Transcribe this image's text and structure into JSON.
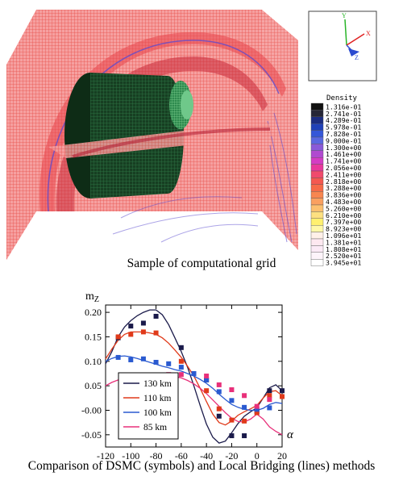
{
  "figure_grid": {
    "caption": "Sample of computational grid",
    "density_legend": {
      "title": "Density",
      "entries": [
        {
          "label": "1.316e-01",
          "color": "#111111"
        },
        {
          "label": "2.741e-01",
          "color": "#262636"
        },
        {
          "label": "4.289e-01",
          "color": "#1c2c80"
        },
        {
          "label": "5.978e-01",
          "color": "#2040b8"
        },
        {
          "label": "7.828e-01",
          "color": "#3557d8"
        },
        {
          "label": "9.000e-01",
          "color": "#5a68e0"
        },
        {
          "label": "1.300e+00",
          "color": "#8a5ad8"
        },
        {
          "label": "1.461e+00",
          "color": "#b04ad0"
        },
        {
          "label": "1.741e+00",
          "color": "#d43cc4"
        },
        {
          "label": "2.056e+00",
          "color": "#e8389c"
        },
        {
          "label": "2.411e+00",
          "color": "#f04a6c"
        },
        {
          "label": "2.818e+00",
          "color": "#f45850"
        },
        {
          "label": "3.288e+00",
          "color": "#f66a48"
        },
        {
          "label": "3.836e+00",
          "color": "#f88650"
        },
        {
          "label": "4.483e+00",
          "color": "#faa060"
        },
        {
          "label": "5.260e+00",
          "color": "#fcc070"
        },
        {
          "label": "6.210e+00",
          "color": "#fde080"
        },
        {
          "label": "7.397e+00",
          "color": "#fff070"
        },
        {
          "label": "8.923e+00",
          "color": "#fff8a8"
        },
        {
          "label": "1.096e+01",
          "color": "#fff0e8"
        },
        {
          "label": "1.381e+01",
          "color": "#fde8f0"
        },
        {
          "label": "1.808e+01",
          "color": "#fbeaf6"
        },
        {
          "label": "2.520e+01",
          "color": "#fdf4fa"
        },
        {
          "label": "3.945e+01",
          "color": "#ffffff"
        }
      ]
    },
    "axis_widget": {
      "y_label": "Y",
      "x_label": "X",
      "z_label": "Z"
    }
  },
  "chart_data": {
    "type": "line",
    "title": "",
    "caption": "Comparison of DSMC (symbols) and Local Bridging (lines) methods",
    "xlabel": "α",
    "ylabel": "m",
    "ylabel_sub": "Z",
    "xlim": [
      -120,
      20
    ],
    "ylim": [
      -0.075,
      0.215
    ],
    "xticks": [
      -120,
      -100,
      -80,
      -60,
      -40,
      -20,
      0,
      20
    ],
    "yticks": [
      0.2,
      0.15,
      0.1,
      0.05,
      -0.0,
      -0.05
    ],
    "ytick_labels": [
      "0.20",
      "0.15",
      "0.10",
      "0.05",
      "-0.00",
      "-0.05"
    ],
    "legend_position": "bottom-left",
    "series": [
      {
        "name": "130 km",
        "color": "#1a1a4a",
        "line_x": [
          -120,
          -115,
          -110,
          -105,
          -100,
          -95,
          -90,
          -85,
          -80,
          -75,
          -70,
          -65,
          -60,
          -55,
          -50,
          -45,
          -40,
          -35,
          -30,
          -25,
          -20,
          -15,
          -10,
          -5,
          0,
          5,
          10,
          15,
          20
        ],
        "line_y": [
          0.095,
          0.12,
          0.15,
          0.17,
          0.183,
          0.193,
          0.2,
          0.205,
          0.205,
          0.195,
          0.175,
          0.148,
          0.12,
          0.088,
          0.05,
          0.01,
          -0.028,
          -0.055,
          -0.067,
          -0.063,
          -0.046,
          -0.027,
          -0.012,
          -0.003,
          0.005,
          0.025,
          0.046,
          0.052,
          0.04
        ],
        "points_x": [
          -110,
          -100,
          -90,
          -80,
          -60,
          -40,
          -30,
          -20,
          -10,
          0,
          10,
          20
        ],
        "points_y": [
          0.148,
          0.172,
          0.178,
          0.192,
          0.128,
          0.062,
          -0.012,
          -0.052,
          -0.052,
          -0.003,
          0.04,
          0.04
        ]
      },
      {
        "name": "110 km",
        "color": "#e03a1a",
        "line_x": [
          -120,
          -115,
          -110,
          -105,
          -100,
          -95,
          -90,
          -85,
          -80,
          -75,
          -70,
          -65,
          -60,
          -55,
          -50,
          -45,
          -40,
          -35,
          -30,
          -25,
          -20,
          -15,
          -10,
          -5,
          0,
          5,
          10,
          15,
          20
        ],
        "line_y": [
          0.105,
          0.125,
          0.143,
          0.155,
          0.16,
          0.16,
          0.16,
          0.158,
          0.155,
          0.148,
          0.137,
          0.123,
          0.108,
          0.09,
          0.07,
          0.045,
          0.018,
          -0.008,
          -0.025,
          -0.03,
          -0.022,
          -0.01,
          -0.003,
          0.003,
          0.01,
          0.025,
          0.038,
          0.04,
          0.03
        ],
        "points_x": [
          -110,
          -100,
          -90,
          -80,
          -60,
          -40,
          -30,
          -20,
          -10,
          0,
          10,
          20
        ],
        "points_y": [
          0.15,
          0.155,
          0.16,
          0.158,
          0.1,
          0.04,
          0.003,
          -0.02,
          -0.022,
          -0.005,
          0.03,
          0.028
        ]
      },
      {
        "name": "100 km",
        "color": "#2a5ad0",
        "line_x": [
          -120,
          -115,
          -110,
          -105,
          -100,
          -95,
          -90,
          -85,
          -80,
          -75,
          -70,
          -65,
          -60,
          -55,
          -50,
          -45,
          -40,
          -35,
          -30,
          -25,
          -20,
          -15,
          -10,
          -5,
          0,
          5,
          10,
          15,
          20
        ],
        "line_y": [
          0.1,
          0.106,
          0.11,
          0.111,
          0.109,
          0.106,
          0.102,
          0.098,
          0.094,
          0.09,
          0.087,
          0.083,
          0.08,
          0.075,
          0.07,
          0.063,
          0.055,
          0.045,
          0.033,
          0.022,
          0.012,
          0.006,
          0.002,
          0.0,
          0.0,
          0.004,
          0.012,
          0.016,
          0.014
        ],
        "points_x": [
          -110,
          -100,
          -90,
          -80,
          -70,
          -60,
          -50,
          -40,
          -30,
          -20,
          -10,
          0,
          10
        ],
        "points_y": [
          0.108,
          0.103,
          0.105,
          0.098,
          0.095,
          0.088,
          0.075,
          0.062,
          0.038,
          0.02,
          0.006,
          0.002,
          0.005
        ]
      },
      {
        "name": "85 km",
        "color": "#e8307a",
        "line_x": [
          -120,
          -115,
          -110,
          -105,
          -100,
          -95,
          -90,
          -85,
          -80,
          -75,
          -70,
          -65,
          -60,
          -55,
          -50,
          -45,
          -40,
          -35,
          -30,
          -25,
          -20,
          -15,
          -10,
          -5,
          0,
          5,
          10,
          15,
          20
        ],
        "line_y": [
          0.05,
          0.057,
          0.062,
          0.066,
          0.068,
          0.07,
          0.071,
          0.072,
          0.072,
          0.072,
          0.071,
          0.069,
          0.066,
          0.061,
          0.054,
          0.045,
          0.034,
          0.021,
          0.008,
          -0.005,
          -0.016,
          -0.023,
          -0.024,
          -0.018,
          -0.008,
          -0.018,
          -0.034,
          -0.043,
          -0.05
        ],
        "points_x": [
          -70,
          -60,
          -40,
          -30,
          -20,
          -10,
          0,
          10
        ],
        "points_y": [
          0.073,
          0.073,
          0.07,
          0.052,
          0.042,
          0.03,
          0.008,
          0.022
        ]
      }
    ]
  }
}
